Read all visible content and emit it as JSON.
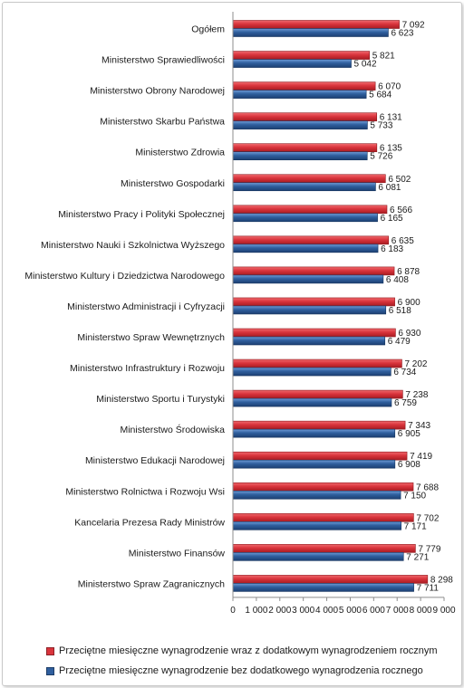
{
  "chart_data": {
    "type": "bar",
    "orientation": "horizontal",
    "categories": [
      "Ogółem",
      "Ministerstwo Sprawiedliwości",
      "Ministerstwo Obrony Narodowej",
      "Ministerstwo Skarbu Państwa",
      "Ministerstwo Zdrowia",
      "Ministerstwo Gospodarki",
      "Ministerstwo Pracy i Polityki Społecznej",
      "Ministerstwo Nauki i Szkolnictwa Wyższego",
      "Ministerstwo Kultury i Dziedzictwa Narodowego",
      "Ministerstwo Administracji i Cyfryzacji",
      "Ministerstwo Spraw Wewnętrznych",
      "Ministerstwo Infrastruktury i Rozwoju",
      "Ministerstwo Sportu i Turystyki",
      "Ministerstwo Środowiska",
      "Ministerstwo Edukacji Narodowej",
      "Ministerstwo Rolnictwa i Rozwoju Wsi",
      "Kancelaria Prezesa Rady Ministrów",
      "Ministerstwo Finansów",
      "Ministerstwo Spraw Zagranicznych"
    ],
    "series": [
      {
        "name": "Przeciętne miesięczne wynagrodzenie wraz z dodatkowym wynagrodzeniem rocznym",
        "color": "#d9343c",
        "values": [
          7092,
          5821,
          6070,
          6131,
          6135,
          6502,
          6566,
          6635,
          6878,
          6900,
          6930,
          7202,
          7238,
          7343,
          7419,
          7688,
          7702,
          7779,
          8298
        ],
        "labels": [
          "7 092",
          "5 821",
          "6 070",
          "6 131",
          "6 135",
          "6 502",
          "6 566",
          "6 635",
          "6 878",
          "6 900",
          "6 930",
          "7 202",
          "7 238",
          "7 343",
          "7 419",
          "7 688",
          "7 702",
          "7 779",
          "8 298"
        ]
      },
      {
        "name": "Przeciętne miesięczne wynagrodzenie bez dodatkowego wynagrodzenia rocznego",
        "color": "#2f5f9e",
        "values": [
          6623,
          5042,
          5684,
          5733,
          5726,
          6081,
          6165,
          6183,
          6408,
          6518,
          6479,
          6734,
          6759,
          6905,
          6908,
          7150,
          7171,
          7271,
          7711
        ],
        "labels": [
          "6 623",
          "5 042",
          "5 684",
          "5 733",
          "5 726",
          "6 081",
          "6 165",
          "6 183",
          "6 408",
          "6 518",
          "6 479",
          "6 734",
          "6 759",
          "6 905",
          "6 908",
          "7 150",
          "7 171",
          "7 271",
          "7 711"
        ]
      }
    ],
    "xlim": [
      0,
      9000
    ],
    "xticks": [
      "0",
      "1 000",
      "2 000",
      "3 000",
      "4 000",
      "5 000",
      "6 000",
      "7 000",
      "8 000",
      "9 000"
    ],
    "title": "",
    "xlabel": "",
    "ylabel": "",
    "grid": false,
    "legend_position": "bottom"
  }
}
